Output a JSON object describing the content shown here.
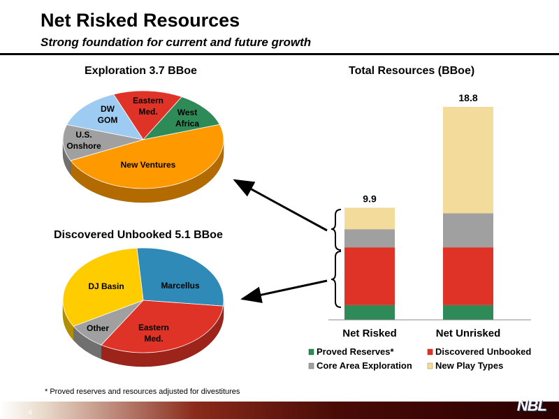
{
  "header": {
    "title": "Net Risked Resources",
    "subtitle": "Strong foundation for current and future growth"
  },
  "footnote": "* Proved reserves and resources adjusted for divestitures",
  "page_number": "4",
  "logo_text": "NBL",
  "colors": {
    "proved": "#2e8b57",
    "discovered": "#e03327",
    "core": "#a0a0a0",
    "new_play": "#f3dc9b",
    "dw_gom": "#9ecbf2",
    "new_ventures": "#ff9900",
    "dj_basin": "#ffcc00",
    "marcellus": "#2f8ab8"
  },
  "chart_data": [
    {
      "type": "pie",
      "title": "Exploration 3.7 BBoe",
      "slices": [
        {
          "label": "Eastern Med.",
          "value": 14,
          "color": "#e03327"
        },
        {
          "label": "West Africa",
          "value": 12,
          "color": "#2e8b57"
        },
        {
          "label": "New Ventures",
          "value": 48,
          "color": "#ff9900"
        },
        {
          "label": "U.S. Onshore",
          "value": 12,
          "color": "#a0a0a0"
        },
        {
          "label": "DW GOM",
          "value": 14,
          "color": "#9ecbf2"
        }
      ]
    },
    {
      "type": "pie",
      "title": "Discovered Unbooked 5.1 BBoe",
      "slices": [
        {
          "label": "Marcellus",
          "value": 28,
          "color": "#2f8ab8"
        },
        {
          "label": "Eastern Med.",
          "value": 32,
          "color": "#e03327"
        },
        {
          "label": "Other",
          "value": 8,
          "color": "#a0a0a0"
        },
        {
          "label": "DJ Basin",
          "value": 32,
          "color": "#ffcc00"
        }
      ]
    },
    {
      "type": "bar",
      "stacked": true,
      "title": "Total Resources (BBoe)",
      "categories": [
        "Net Risked",
        "Net Unrisked"
      ],
      "totals": [
        "9.9",
        "18.8"
      ],
      "ylim": [
        0,
        18.8
      ],
      "series": [
        {
          "name": "Proved Reserves*",
          "values": [
            1.3,
            1.3
          ],
          "color": "#2e8b57"
        },
        {
          "name": "Discovered Unbooked",
          "values": [
            5.1,
            5.1
          ],
          "color": "#e03327"
        },
        {
          "name": "Core Area Exploration",
          "values": [
            1.6,
            3.0
          ],
          "color": "#a0a0a0"
        },
        {
          "name": "New Play Types",
          "values": [
            1.9,
            9.4
          ],
          "color": "#f3dc9b"
        }
      ],
      "legend_position": "bottom"
    }
  ]
}
